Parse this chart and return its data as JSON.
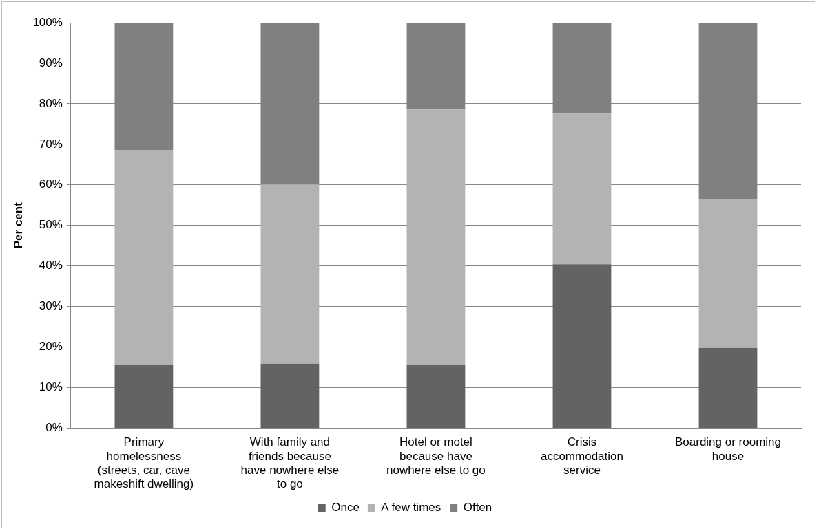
{
  "chart_data": {
    "type": "bar",
    "stacked": true,
    "ylabel": "Per cent",
    "categories": [
      "Primary homelessness (streets, car, cave makeshift dwelling)",
      "With family and friends because have nowhere else to go",
      "Hotel or motel because have nowhere else to go",
      "Crisis accommodation service",
      "Boarding or rooming house"
    ],
    "series": [
      {
        "name": "Once",
        "color": "#636363",
        "values": [
          15.5,
          15.9,
          15.5,
          40.4,
          19.8
        ]
      },
      {
        "name": "A few times",
        "color": "#b3b3b3",
        "values": [
          53.1,
          44.2,
          63.1,
          37.1,
          36.7
        ]
      },
      {
        "name": "Often",
        "color": "#808080",
        "values": [
          31.4,
          39.9,
          21.4,
          22.5,
          43.5
        ]
      }
    ],
    "ylim": [
      0,
      100
    ],
    "yticks": [
      {
        "value": 0,
        "label": "0%"
      },
      {
        "value": 10,
        "label": "10%"
      },
      {
        "value": 20,
        "label": "20%"
      },
      {
        "value": 30,
        "label": "30%"
      },
      {
        "value": 40,
        "label": "40%"
      },
      {
        "value": 50,
        "label": "50%"
      },
      {
        "value": 60,
        "label": "60%"
      },
      {
        "value": 70,
        "label": "70%"
      },
      {
        "value": 80,
        "label": "80%"
      },
      {
        "value": 90,
        "label": "90%"
      },
      {
        "value": 100,
        "label": "100%"
      }
    ],
    "grid": "y",
    "legend": "bottom"
  }
}
